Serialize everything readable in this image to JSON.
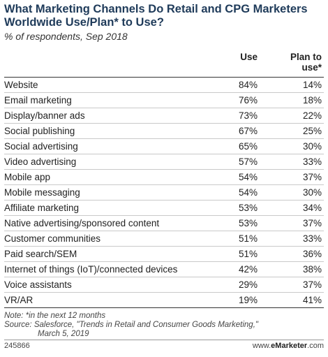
{
  "header": {
    "title": "What Marketing Channels Do Retail and CPG Marketers Worldwide Use/Plan* to Use?",
    "subtitle": "% of respondents, Sep 2018"
  },
  "columns": {
    "use": "Use",
    "plan_line1": "Plan to",
    "plan_line2": "use*"
  },
  "chart_data": {
    "type": "table",
    "title": "What Marketing Channels Do Retail and CPG Marketers Worldwide Use/Plan* to Use?",
    "subtitle": "% of respondents, Sep 2018",
    "columns": [
      "Use",
      "Plan to use*"
    ],
    "unit": "%",
    "rows": [
      {
        "label": "Website",
        "use": "84%",
        "plan": "14%"
      },
      {
        "label": "Email marketing",
        "use": "76%",
        "plan": "18%"
      },
      {
        "label": "Display/banner ads",
        "use": "73%",
        "plan": "22%"
      },
      {
        "label": "Social publishing",
        "use": "67%",
        "plan": "25%"
      },
      {
        "label": "Social advertising",
        "use": "65%",
        "plan": "30%"
      },
      {
        "label": "Video advertising",
        "use": "57%",
        "plan": "33%"
      },
      {
        "label": "Mobile app",
        "use": "54%",
        "plan": "37%"
      },
      {
        "label": "Mobile messaging",
        "use": "54%",
        "plan": "30%"
      },
      {
        "label": "Affiliate marketing",
        "use": "53%",
        "plan": "34%"
      },
      {
        "label": "Native advertising/sponsored content",
        "use": "53%",
        "plan": "37%"
      },
      {
        "label": "Customer communities",
        "use": "51%",
        "plan": "33%"
      },
      {
        "label": "Paid search/SEM",
        "use": "51%",
        "plan": "36%"
      },
      {
        "label": "Internet of things (IoT)/connected devices",
        "use": "42%",
        "plan": "38%"
      },
      {
        "label": "Voice assistants",
        "use": "29%",
        "plan": "37%"
      },
      {
        "label": "VR/AR",
        "use": "19%",
        "plan": "41%"
      }
    ]
  },
  "notes": {
    "note": "Note: *in the next 12 months",
    "source_line1": "Source: Salesforce, \"Trends in Retail and Consumer Goods Marketing,\"",
    "source_line2": "March 5, 2019"
  },
  "footer": {
    "chart_id": "245866",
    "brand_prefix": "www.",
    "brand_bold": "eMarketer",
    "brand_suffix": ".com"
  },
  "colors": {
    "title": "#1f3b5a",
    "row_divider": "#c9c9c9"
  }
}
